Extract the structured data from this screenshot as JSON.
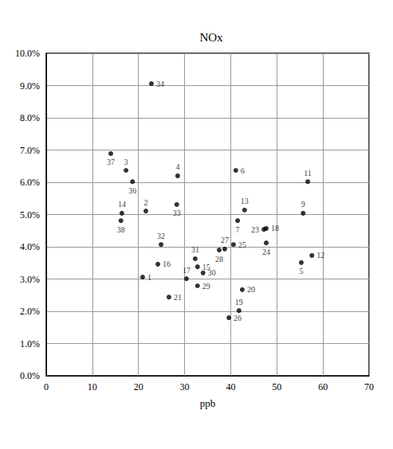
{
  "chart_data": {
    "type": "scatter",
    "title": "NOx",
    "x_label": "ppb",
    "x": [
      20.9,
      21.6,
      17.3,
      28.5,
      55.3,
      41.1,
      41.5,
      55.7,
      56.7,
      57.6,
      43.0,
      16.4,
      32.8,
      24.2,
      30.4,
      47.7,
      41.8,
      42.5,
      26.6,
      47.2,
      47.7,
      40.6,
      39.6,
      38.7,
      37.5,
      32.8,
      34.0,
      32.3,
      24.9,
      28.3,
      22.8,
      18.7,
      14.0,
      16.2
    ],
    "values": [
      3.06,
      5.11,
      6.37,
      6.2,
      3.51,
      6.37,
      4.81,
      5.04,
      6.02,
      3.73,
      5.14,
      5.04,
      3.38,
      3.46,
      3.01,
      4.57,
      2.02,
      2.67,
      2.44,
      4.54,
      4.12,
      4.07,
      1.8,
      3.93,
      3.9,
      2.79,
      3.19,
      3.63,
      4.07,
      5.31,
      9.06,
      6.02,
      6.89,
      4.81
    ],
    "labels": [
      "1",
      "2",
      "3",
      "4",
      "5",
      "6",
      "7",
      "9",
      "11",
      "12",
      "13",
      "14",
      "15",
      "16",
      "17",
      "18",
      "19",
      "20",
      "21",
      "23",
      "24",
      "25",
      "26",
      "27",
      "28",
      "29",
      "30",
      "31",
      "32",
      "33",
      "34",
      "36",
      "37",
      "38"
    ],
    "color": "#000000",
    "xlim": [
      0,
      70
    ],
    "xticks": [
      0,
      10,
      20,
      30,
      40,
      50,
      60,
      70
    ],
    "ylim": [
      0,
      10
    ],
    "yticks": [
      {
        "value": 0,
        "label": "0.0%"
      },
      {
        "value": 1,
        "label": "1.0%"
      },
      {
        "value": 2,
        "label": "2.0%"
      },
      {
        "value": 3,
        "label": "3.0%"
      },
      {
        "value": 4,
        "label": "4.0%"
      },
      {
        "value": 5,
        "label": "5.0%"
      },
      {
        "value": 6,
        "label": "6.0%"
      },
      {
        "value": 7,
        "label": "7.0%"
      },
      {
        "value": 8,
        "label": "8.0%"
      },
      {
        "value": 9,
        "label": "9.0%"
      },
      {
        "value": 10,
        "label": "10.0%"
      }
    ],
    "grid": true
  }
}
